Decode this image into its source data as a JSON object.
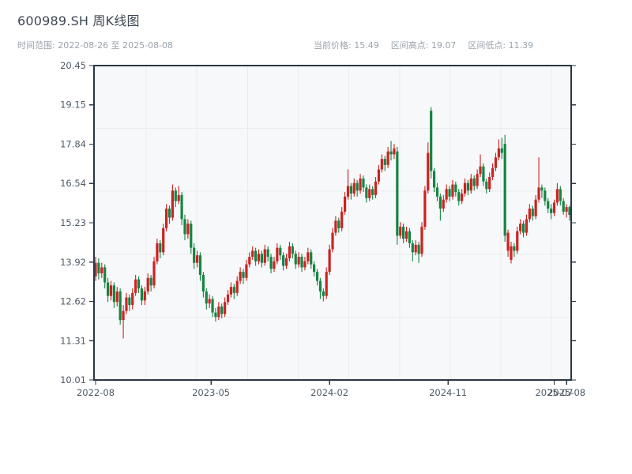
{
  "header": {
    "title": "600989.SH 周K线图",
    "subtitle": "时间范围: 2022-08-26 至 2025-08-08",
    "stats": [
      "当前价格: 15.49",
      "区间高点: 19.07",
      "区间低点: 11.39"
    ]
  },
  "chart_data": {
    "type": "candlestick",
    "symbol": "600989.SH",
    "period": "weekly",
    "title": "600989.SH 周K线图",
    "date_start": "2022-08-26",
    "date_end": "2025-08-08",
    "current_price": 15.49,
    "range_high": 19.07,
    "range_low": 11.39,
    "ylim": [
      10.01,
      20.45
    ],
    "y_ticks": [
      20.45,
      19.15,
      17.84,
      16.54,
      15.23,
      13.92,
      12.62,
      11.31,
      10.01
    ],
    "x_ticks": [
      {
        "label": "2022-08",
        "week": 0
      },
      {
        "label": "2023-05",
        "week": 37.5
      },
      {
        "label": "2024-02",
        "week": 76
      },
      {
        "label": "2024-11",
        "week": 114.5
      },
      {
        "label": "2025-07",
        "week": 149
      },
      {
        "label": "2025-08",
        "week": 153
      }
    ],
    "colors": {
      "up": "#cc2222",
      "down": "#158442",
      "grid": "#e9ebee",
      "axis": "#2b3744",
      "plot_bg": "#f7f8fa",
      "tick_label": "#4e5a66"
    },
    "grid": true,
    "legend": "none",
    "candles_format": [
      "open",
      "high",
      "low",
      "close"
    ],
    "candles": [
      [
        13.45,
        14.1,
        13.3,
        13.9
      ],
      [
        13.9,
        14.05,
        13.35,
        13.55
      ],
      [
        13.55,
        13.9,
        13.4,
        13.75
      ],
      [
        13.75,
        13.85,
        13.05,
        13.25
      ],
      [
        13.25,
        13.4,
        12.6,
        12.8
      ],
      [
        12.8,
        13.3,
        12.65,
        13.15
      ],
      [
        13.15,
        13.25,
        12.4,
        12.6
      ],
      [
        12.6,
        13.1,
        12.45,
        12.95
      ],
      [
        12.95,
        13.05,
        11.85,
        12.0
      ],
      [
        12.0,
        12.5,
        11.39,
        12.3
      ],
      [
        12.3,
        12.9,
        12.2,
        12.75
      ],
      [
        12.75,
        12.85,
        12.3,
        12.5
      ],
      [
        12.5,
        13.05,
        12.35,
        12.9
      ],
      [
        12.9,
        13.5,
        12.8,
        13.35
      ],
      [
        13.35,
        13.45,
        12.9,
        13.05
      ],
      [
        13.05,
        13.15,
        12.5,
        12.65
      ],
      [
        12.65,
        13.1,
        12.5,
        12.95
      ],
      [
        12.95,
        13.55,
        12.85,
        13.4
      ],
      [
        13.4,
        13.5,
        12.95,
        13.15
      ],
      [
        13.15,
        14.1,
        13.05,
        13.95
      ],
      [
        13.95,
        14.7,
        13.85,
        14.55
      ],
      [
        14.55,
        14.65,
        14.05,
        14.25
      ],
      [
        14.25,
        15.2,
        14.15,
        15.05
      ],
      [
        15.05,
        15.85,
        14.95,
        15.7
      ],
      [
        15.7,
        15.8,
        15.2,
        15.4
      ],
      [
        15.4,
        16.5,
        15.3,
        16.3
      ],
      [
        16.3,
        16.4,
        15.75,
        15.95
      ],
      [
        15.95,
        16.45,
        15.85,
        16.15
      ],
      [
        16.15,
        16.25,
        15.15,
        15.35
      ],
      [
        15.35,
        15.5,
        14.65,
        14.85
      ],
      [
        14.85,
        15.35,
        14.7,
        15.2
      ],
      [
        15.2,
        15.3,
        14.2,
        14.4
      ],
      [
        14.4,
        14.55,
        13.7,
        13.9
      ],
      [
        13.9,
        14.3,
        13.75,
        14.15
      ],
      [
        14.15,
        14.25,
        13.3,
        13.5
      ],
      [
        13.5,
        13.6,
        12.75,
        12.95
      ],
      [
        12.95,
        13.05,
        12.35,
        12.55
      ],
      [
        12.55,
        12.85,
        12.4,
        12.7
      ],
      [
        12.7,
        12.8,
        12.1,
        12.25
      ],
      [
        12.25,
        12.4,
        11.95,
        12.1
      ],
      [
        12.1,
        12.6,
        12.0,
        12.45
      ],
      [
        12.45,
        12.55,
        12.05,
        12.2
      ],
      [
        12.2,
        12.75,
        12.1,
        12.6
      ],
      [
        12.6,
        13.0,
        12.5,
        12.85
      ],
      [
        12.85,
        13.25,
        12.75,
        13.1
      ],
      [
        13.1,
        13.2,
        12.7,
        12.9
      ],
      [
        12.9,
        13.45,
        12.8,
        13.3
      ],
      [
        13.3,
        13.75,
        13.2,
        13.6
      ],
      [
        13.6,
        13.7,
        13.2,
        13.4
      ],
      [
        13.4,
        14.0,
        13.3,
        13.85
      ],
      [
        13.85,
        14.25,
        13.75,
        14.1
      ],
      [
        14.1,
        14.45,
        14.0,
        14.3
      ],
      [
        14.3,
        14.4,
        13.8,
        13.95
      ],
      [
        13.95,
        14.35,
        13.85,
        14.2
      ],
      [
        14.2,
        14.3,
        13.75,
        13.9
      ],
      [
        13.9,
        14.5,
        13.8,
        14.35
      ],
      [
        14.35,
        14.45,
        13.95,
        14.1
      ],
      [
        14.1,
        14.2,
        13.55,
        13.7
      ],
      [
        13.7,
        14.1,
        13.6,
        13.95
      ],
      [
        13.95,
        14.55,
        13.85,
        14.4
      ],
      [
        14.4,
        14.5,
        14.0,
        14.15
      ],
      [
        14.15,
        14.25,
        13.65,
        13.8
      ],
      [
        13.8,
        14.2,
        13.7,
        14.05
      ],
      [
        14.05,
        14.6,
        13.95,
        14.45
      ],
      [
        14.45,
        14.55,
        14.05,
        14.2
      ],
      [
        14.2,
        14.3,
        13.7,
        13.85
      ],
      [
        13.85,
        14.25,
        13.75,
        14.1
      ],
      [
        14.1,
        14.2,
        13.6,
        13.75
      ],
      [
        13.75,
        14.1,
        13.65,
        13.95
      ],
      [
        13.95,
        14.4,
        13.85,
        14.25
      ],
      [
        14.25,
        14.35,
        13.7,
        13.85
      ],
      [
        13.85,
        13.95,
        13.45,
        13.6
      ],
      [
        13.6,
        13.7,
        13.15,
        13.3
      ],
      [
        13.3,
        13.4,
        12.7,
        12.95
      ],
      [
        12.95,
        13.05,
        12.62,
        12.8
      ],
      [
        12.8,
        13.75,
        12.7,
        13.6
      ],
      [
        13.6,
        14.5,
        13.5,
        14.35
      ],
      [
        14.35,
        15.05,
        14.25,
        14.9
      ],
      [
        14.9,
        15.45,
        14.8,
        15.3
      ],
      [
        15.3,
        15.4,
        14.9,
        15.05
      ],
      [
        15.05,
        15.75,
        14.95,
        15.6
      ],
      [
        15.6,
        16.25,
        15.5,
        16.1
      ],
      [
        16.1,
        17.0,
        16.0,
        16.45
      ],
      [
        16.45,
        16.55,
        16.0,
        16.2
      ],
      [
        16.2,
        16.7,
        16.1,
        16.55
      ],
      [
        16.55,
        16.65,
        16.1,
        16.3
      ],
      [
        16.3,
        16.85,
        16.2,
        16.7
      ],
      [
        16.7,
        16.8,
        16.25,
        16.4
      ],
      [
        16.4,
        16.5,
        15.9,
        16.05
      ],
      [
        16.05,
        16.5,
        15.95,
        16.35
      ],
      [
        16.35,
        16.45,
        16.0,
        16.15
      ],
      [
        16.15,
        16.75,
        16.05,
        16.6
      ],
      [
        16.6,
        17.15,
        16.5,
        17.0
      ],
      [
        17.0,
        17.5,
        16.9,
        17.35
      ],
      [
        17.35,
        17.45,
        16.95,
        17.15
      ],
      [
        17.15,
        17.75,
        17.05,
        17.6
      ],
      [
        17.6,
        17.95,
        17.3,
        17.5
      ],
      [
        17.5,
        17.85,
        17.35,
        17.7
      ],
      [
        17.6,
        17.75,
        14.5,
        14.8
      ],
      [
        14.8,
        15.25,
        14.7,
        15.1
      ],
      [
        15.1,
        15.2,
        14.55,
        14.7
      ],
      [
        14.7,
        15.1,
        14.6,
        14.95
      ],
      [
        14.95,
        15.05,
        14.4,
        14.55
      ],
      [
        14.55,
        14.65,
        13.95,
        14.25
      ],
      [
        14.25,
        14.65,
        14.15,
        14.5
      ],
      [
        14.5,
        14.6,
        13.9,
        14.2
      ],
      [
        14.2,
        15.25,
        14.1,
        15.1
      ],
      [
        15.1,
        16.45,
        15.0,
        16.3
      ],
      [
        16.3,
        17.9,
        16.2,
        17.55
      ],
      [
        18.95,
        19.07,
        16.7,
        16.95
      ],
      [
        16.95,
        17.05,
        16.25,
        16.4
      ],
      [
        16.4,
        16.55,
        15.95,
        16.1
      ],
      [
        16.1,
        16.2,
        15.3,
        15.7
      ],
      [
        15.7,
        16.15,
        15.6,
        16.0
      ],
      [
        16.0,
        16.5,
        15.9,
        16.35
      ],
      [
        16.35,
        16.45,
        15.95,
        16.1
      ],
      [
        16.1,
        16.65,
        16.0,
        16.5
      ],
      [
        16.5,
        16.6,
        16.1,
        16.25
      ],
      [
        16.25,
        16.35,
        15.8,
        15.95
      ],
      [
        15.95,
        16.35,
        15.85,
        16.2
      ],
      [
        16.2,
        16.7,
        16.1,
        16.55
      ],
      [
        16.55,
        16.65,
        16.15,
        16.3
      ],
      [
        16.3,
        16.85,
        16.2,
        16.7
      ],
      [
        16.7,
        16.8,
        16.3,
        16.45
      ],
      [
        16.45,
        17.0,
        16.35,
        16.85
      ],
      [
        16.85,
        17.5,
        16.75,
        17.1
      ],
      [
        17.1,
        17.2,
        16.45,
        16.6
      ],
      [
        16.6,
        16.7,
        16.2,
        16.35
      ],
      [
        16.35,
        16.9,
        16.25,
        16.75
      ],
      [
        16.75,
        17.2,
        16.65,
        17.05
      ],
      [
        17.05,
        17.55,
        16.95,
        17.4
      ],
      [
        17.4,
        18.0,
        17.3,
        17.7
      ],
      [
        17.7,
        18.05,
        17.35,
        17.55
      ],
      [
        17.85,
        18.15,
        14.6,
        14.8
      ],
      [
        14.3,
        15.0,
        14.1,
        14.9
      ],
      [
        14.0,
        14.6,
        13.88,
        14.45
      ],
      [
        14.45,
        14.55,
        14.1,
        14.3
      ],
      [
        14.3,
        15.1,
        14.2,
        14.95
      ],
      [
        14.95,
        15.35,
        14.85,
        15.2
      ],
      [
        15.2,
        15.3,
        14.75,
        14.9
      ],
      [
        14.9,
        15.5,
        14.8,
        15.35
      ],
      [
        15.35,
        15.85,
        15.25,
        15.7
      ],
      [
        15.7,
        15.8,
        15.3,
        15.45
      ],
      [
        15.45,
        16.15,
        15.35,
        16.0
      ],
      [
        16.0,
        17.4,
        15.9,
        16.4
      ],
      [
        16.4,
        16.5,
        16.05,
        16.3
      ],
      [
        16.3,
        16.4,
        15.8,
        15.95
      ],
      [
        15.95,
        16.05,
        15.55,
        15.7
      ],
      [
        15.7,
        15.85,
        15.35,
        15.55
      ],
      [
        15.55,
        16.0,
        15.45,
        15.9
      ],
      [
        15.9,
        16.55,
        15.8,
        16.35
      ],
      [
        16.35,
        16.45,
        15.8,
        15.95
      ],
      [
        15.95,
        16.05,
        15.5,
        15.6
      ],
      [
        15.6,
        15.85,
        15.4,
        15.75
      ],
      [
        15.75,
        15.8,
        15.3,
        15.49
      ]
    ]
  }
}
